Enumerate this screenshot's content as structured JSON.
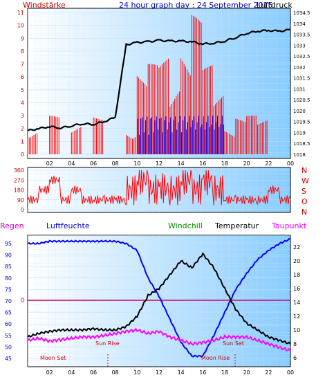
{
  "top": {
    "title_left": "Windstärke",
    "title_center": "24 hour graph day : 24 September 2015",
    "title_right": "Luftdruck",
    "x_ticks": [
      "02",
      "04",
      "06",
      "08",
      "10",
      "12",
      "14",
      "16",
      "18",
      "20",
      "22",
      "00"
    ],
    "y_left_ticks": [
      "11",
      "10",
      "9",
      "8",
      "7",
      "6",
      "5",
      "4",
      "3",
      "2",
      "1",
      "0"
    ],
    "y_right_ticks": [
      "1034.5",
      "1034",
      "1033.5",
      "1033",
      "1032.5",
      "1032",
      "1031.5",
      "1031",
      "1020.5",
      "1020",
      "1019.5",
      "1019",
      "1018.5",
      "1018"
    ],
    "colors": {
      "wind_gust": "#ff0000",
      "wind_avg": "#0000ff",
      "pressure": "#000000",
      "title": "#cc0000",
      "title_center": "#0000cc"
    }
  },
  "mid": {
    "y_ticks": [
      "360",
      "270",
      "180",
      "90",
      "0"
    ],
    "compass": [
      "N",
      "W",
      "S",
      "O",
      "N"
    ],
    "colors": {
      "direction": "#ff0000",
      "compass": "#cc0000"
    }
  },
  "bottom": {
    "legend": {
      "regen": "Regen",
      "luftfeuchte": "Luftfeuchte",
      "windchill": "Windchill",
      "temperatur": "Temperatur",
      "taupunkt": "Taupunkt"
    },
    "y_left_ticks": [
      "95",
      "90",
      "85",
      "80",
      "75",
      "70",
      "65",
      "60",
      "55",
      "50",
      "45"
    ],
    "y_right_ticks": [
      "22",
      "20",
      "18",
      "16",
      "14",
      "12",
      "10",
      "8",
      "6"
    ],
    "x_ticks": [
      "02",
      "04",
      "06",
      "08",
      "10",
      "12",
      "14",
      "16",
      "18",
      "20",
      "22",
      "00"
    ],
    "rain_value": "0",
    "annotations": {
      "moon_set_1": "Moon Set",
      "sun_rise": "Sun Rise",
      "sun_set": "Sun Set",
      "moon_rise": "Moon Rise"
    },
    "colors": {
      "humidity": "#0000ff",
      "temperature": "#000000",
      "dewpoint": "#ff00ff",
      "rain_line": "#cc0066",
      "regen": "#cc00cc",
      "luftfeuchte": "#0000cc",
      "windchill": "#008800",
      "taupunkt": "#ff00ff"
    }
  },
  "chart_data": [
    {
      "type": "line",
      "title": "24 hour graph day : 24 September 2015",
      "series": [
        {
          "name": "Windstärke",
          "x": [
            0,
            1,
            2,
            3,
            4,
            5,
            6,
            7,
            8,
            9,
            10,
            11,
            12,
            13,
            14,
            15,
            16,
            17,
            18,
            19,
            20,
            21,
            22,
            23,
            24
          ],
          "values": [
            3,
            0,
            3,
            0,
            3,
            0,
            3,
            0,
            0,
            3,
            7,
            7,
            8,
            8,
            10,
            11,
            7,
            6,
            3,
            3,
            3,
            3,
            0,
            0,
            0
          ]
        },
        {
          "name": "Luftdruck",
          "x": [
            0,
            1,
            2,
            3,
            4,
            5,
            6,
            7,
            8,
            9,
            10,
            11,
            12,
            13,
            14,
            15,
            16,
            17,
            18,
            19,
            20,
            21,
            22,
            23,
            24
          ],
          "values": [
            1018.9,
            1019.2,
            1019.5,
            1019.3,
            1019.6,
            1019.9,
            1019.8,
            1020.2,
            1020.8,
            1031.1,
            1031.4,
            1031.5,
            1031.7,
            1031.6,
            1031.6,
            1031.5,
            1031.2,
            1031.3,
            1031.6,
            1032.1,
            1032.7,
            1033.0,
            1033.1,
            1033.0,
            1033.2
          ]
        }
      ],
      "y_left_range": [
        0,
        11
      ],
      "grid": true
    },
    {
      "type": "scatter",
      "series": [
        {
          "name": "Windrichtung",
          "x": [
            0,
            1,
            2,
            3,
            4,
            5,
            6,
            7,
            8,
            9,
            10,
            11,
            12,
            13,
            14,
            15,
            16,
            17,
            18,
            19,
            20,
            21,
            22,
            23,
            24
          ],
          "values": [
            90,
            180,
            270,
            90,
            180,
            90,
            90,
            90,
            90,
            180,
            270,
            180,
            200,
            180,
            270,
            180,
            270,
            180,
            90,
            90,
            90,
            90,
            180,
            90,
            90
          ]
        }
      ],
      "ylim": [
        0,
        360
      ]
    },
    {
      "type": "line",
      "series": [
        {
          "name": "Luftfeuchte",
          "x": [
            0,
            1,
            2,
            3,
            4,
            5,
            6,
            7,
            8,
            9,
            10,
            11,
            12,
            13,
            14,
            15,
            16,
            17,
            18,
            19,
            20,
            21,
            22,
            23,
            24
          ],
          "values": [
            95,
            95,
            96,
            96,
            96,
            96,
            96,
            96,
            96,
            95,
            92,
            80,
            72,
            62,
            52,
            46,
            46,
            55,
            65,
            75,
            82,
            88,
            92,
            95,
            97
          ]
        },
        {
          "name": "Temperatur",
          "x": [
            0,
            1,
            2,
            3,
            4,
            5,
            6,
            7,
            8,
            9,
            10,
            11,
            12,
            13,
            14,
            15,
            16,
            17,
            18,
            19,
            20,
            21,
            22,
            23,
            24
          ],
          "values": [
            9,
            9.5,
            9.8,
            10,
            10,
            10,
            10.2,
            10,
            10,
            10.5,
            12,
            15,
            16,
            18,
            20,
            19,
            21,
            19,
            16,
            13,
            11,
            10,
            9,
            8.5,
            8
          ]
        },
        {
          "name": "Taupunkt",
          "x": [
            0,
            1,
            2,
            3,
            4,
            5,
            6,
            7,
            8,
            9,
            10,
            11,
            12,
            13,
            14,
            15,
            16,
            17,
            18,
            19,
            20,
            21,
            22,
            23,
            24
          ],
          "values": [
            8.5,
            8.8,
            8.4,
            8.6,
            8.8,
            9,
            9,
            9.2,
            9.5,
            9.8,
            10,
            9.5,
            9.8,
            9,
            8.5,
            8,
            8.2,
            8.5,
            9,
            9,
            9,
            8.5,
            8,
            7.5,
            7
          ]
        }
      ],
      "y_left_range": [
        45,
        95
      ],
      "y_right_range": [
        6,
        22
      ]
    }
  ]
}
